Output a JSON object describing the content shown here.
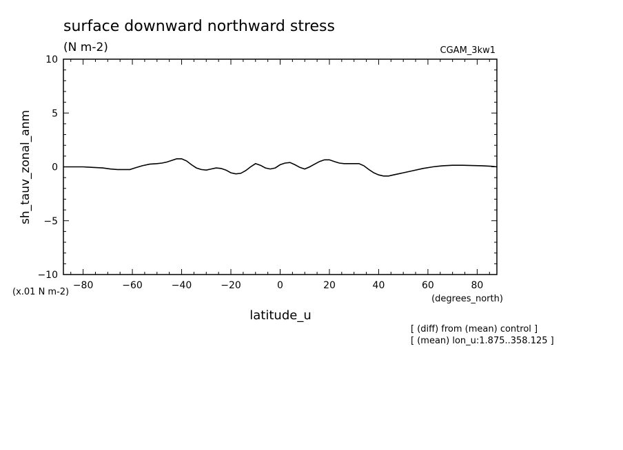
{
  "chart_data": {
    "type": "line",
    "title": "surface downward northward stress",
    "units": "(N m-2)",
    "model_label": "CGAM_3kw1",
    "xlabel": "latitude_u",
    "ylabel": "sh_tauv_zonal_anm",
    "xunits": "(degrees_north)",
    "yscale_note": "(x.01 N m-2)",
    "notes": [
      "[ (diff) from (mean) control ]",
      "[ (mean) lon_u:1.875..358.125 ]"
    ],
    "xlim": [
      -88,
      88
    ],
    "ylim": [
      -10,
      10
    ],
    "xticks": [
      -80,
      -60,
      -40,
      -20,
      0,
      20,
      40,
      60,
      80
    ],
    "xtick_labels": [
      "-80",
      "-60",
      "-40",
      "-20",
      "0",
      "20",
      "40",
      "60",
      "80"
    ],
    "yticks": [
      -10,
      -5,
      0,
      5,
      10
    ],
    "ytick_labels": [
      "-10",
      "-5",
      "0",
      "5",
      "10"
    ],
    "grid": false,
    "series": [
      {
        "x": [
          -88,
          -84,
          -80,
          -76,
          -72,
          -69,
          -66,
          -63,
          -61,
          -59,
          -56,
          -53,
          -50,
          -48,
          -46,
          -44,
          -42,
          -40,
          -38,
          -36,
          -34,
          -32,
          -30,
          -28,
          -26,
          -24,
          -22,
          -20,
          -18,
          -16,
          -14,
          -12,
          -10,
          -8,
          -6,
          -4,
          -2,
          0,
          2,
          4,
          6,
          8,
          10,
          12,
          14,
          16,
          18,
          20,
          22,
          24,
          26,
          28,
          30,
          32,
          34,
          36,
          38,
          40,
          42,
          44,
          46,
          48,
          50,
          54,
          58,
          62,
          66,
          70,
          74,
          78,
          82,
          86,
          88
        ],
        "y": [
          0.0,
          0.0,
          0.0,
          -0.05,
          -0.1,
          -0.2,
          -0.25,
          -0.25,
          -0.25,
          -0.1,
          0.1,
          0.25,
          0.3,
          0.35,
          0.45,
          0.6,
          0.75,
          0.75,
          0.55,
          0.2,
          -0.1,
          -0.25,
          -0.3,
          -0.2,
          -0.1,
          -0.15,
          -0.3,
          -0.55,
          -0.65,
          -0.6,
          -0.35,
          0.0,
          0.3,
          0.15,
          -0.1,
          -0.2,
          -0.1,
          0.2,
          0.35,
          0.4,
          0.2,
          -0.05,
          -0.2,
          0.0,
          0.25,
          0.5,
          0.65,
          0.65,
          0.5,
          0.35,
          0.3,
          0.3,
          0.3,
          0.3,
          0.1,
          -0.25,
          -0.55,
          -0.75,
          -0.85,
          -0.85,
          -0.75,
          -0.65,
          -0.55,
          -0.35,
          -0.15,
          0.0,
          0.1,
          0.15,
          0.15,
          0.12,
          0.1,
          0.05,
          0.0
        ]
      }
    ]
  }
}
